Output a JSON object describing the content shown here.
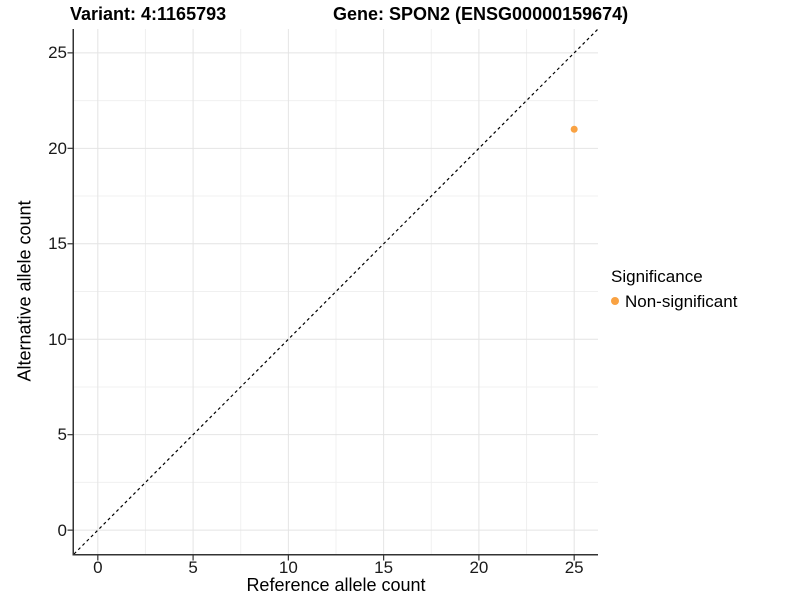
{
  "figure": {
    "background": "#FFFFFF",
    "title_variant": "Variant: 4:1165793",
    "title_gene": "Gene: SPON2 (ENSG00000159674)"
  },
  "legend": {
    "title": "Significance",
    "items": [
      {
        "label": "Non-significant",
        "color": "#F9A242",
        "marker": "circle"
      }
    ]
  },
  "chart_data": {
    "type": "scatter",
    "title": "Variant: 4:1165793   Gene: SPON2 (ENSG00000159674)",
    "xlabel": "Reference allele count",
    "ylabel": "Alternative allele count",
    "xlim": [
      -1.25,
      26.25
    ],
    "ylim": [
      -1.25,
      26.25
    ],
    "x_ticks": [
      0,
      5,
      10,
      15,
      20,
      25
    ],
    "y_ticks": [
      0,
      5,
      10,
      15,
      20,
      25
    ],
    "x_minor_ticks": [
      2.5,
      7.5,
      12.5,
      17.5,
      22.5
    ],
    "y_minor_ticks": [
      2.5,
      7.5,
      12.5,
      17.5,
      22.5
    ],
    "grid": {
      "show": true,
      "major_color": "#E4E4E4",
      "minor_color": "#F0F0F0"
    },
    "axis_line_color": "#333333",
    "tick_color": "#333333",
    "legend_position": "right",
    "series": [
      {
        "name": "Non-significant",
        "color": "#F9A242",
        "marker_size_px": 7,
        "points": [
          {
            "x": 25,
            "y": 21
          }
        ]
      }
    ],
    "reference_line": {
      "kind": "identity y=x",
      "style": "dashed",
      "color": "#000000",
      "from": [
        -1.25,
        -1.25
      ],
      "to": [
        26.25,
        26.25
      ]
    }
  }
}
